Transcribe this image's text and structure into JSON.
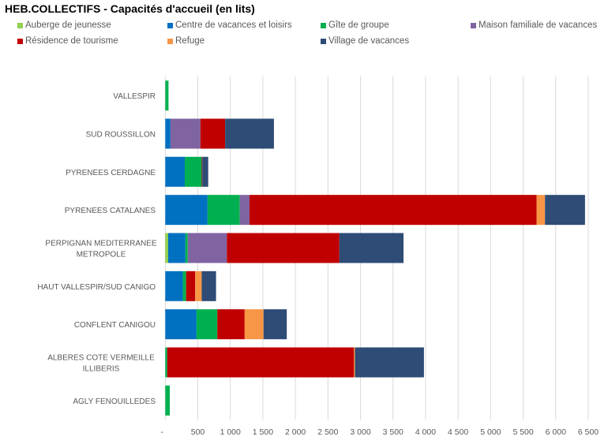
{
  "chart_data": {
    "type": "bar",
    "orientation": "horizontal",
    "stacked": true,
    "title": "HEB.COLLECTIFS - Capacités d'accueil (en lits)",
    "xlabel": "",
    "ylabel": "",
    "xlim": [
      0,
      6500
    ],
    "x_ticks": [
      "-",
      "500",
      "1 000",
      "1 500",
      "2 000",
      "2 500",
      "3 000",
      "3 500",
      "4 000",
      "4 500",
      "5 000",
      "5 500",
      "6 000",
      "6 500"
    ],
    "grid": "vertical",
    "legend_position": "top",
    "categories": [
      "VALLESPIR",
      "SUD ROUSSILLON",
      "PYRENEES CERDAGNE",
      "PYRENEES CATALANES",
      "PERPIGNAN MEDITERRANEE METROPOLE",
      "HAUT VALLESPIR/SUD CANIGO",
      "CONFLENT CANIGOU",
      "ALBERES COTE VERMEILLE ILLIBERIS",
      "AGLY FENOUILLEDES"
    ],
    "series": [
      {
        "name": "Auberge de jeunesse",
        "color": "#92d050",
        "values": [
          0,
          0,
          0,
          0,
          45,
          0,
          0,
          0,
          0
        ]
      },
      {
        "name": "Centre de vacances et loisirs",
        "color": "#0070c0",
        "values": [
          0,
          80,
          300,
          650,
          265,
          270,
          480,
          0,
          0
        ]
      },
      {
        "name": "Gîte de groupe",
        "color": "#00b050",
        "values": [
          50,
          0,
          260,
          495,
          36,
          50,
          320,
          30,
          70
        ]
      },
      {
        "name": "Maison familiale de vacances",
        "color": "#8064a2",
        "values": [
          0,
          460,
          0,
          150,
          600,
          0,
          0,
          0,
          0
        ]
      },
      {
        "name": "Résidence de tourisme",
        "color": "#c00000",
        "values": [
          0,
          380,
          10,
          4410,
          1730,
          140,
          420,
          2870,
          0
        ]
      },
      {
        "name": "Refuge",
        "color": "#f79646",
        "values": [
          0,
          0,
          0,
          130,
          0,
          100,
          290,
          15,
          0
        ]
      },
      {
        "name": "Village de vacances",
        "color": "#2e4c76",
        "values": [
          0,
          750,
          90,
          615,
          985,
          220,
          357,
          1060,
          0
        ]
      }
    ]
  }
}
